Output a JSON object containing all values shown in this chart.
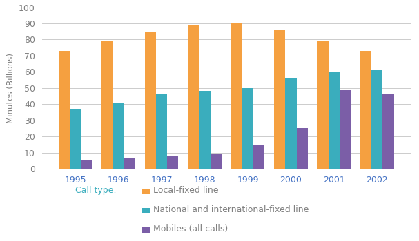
{
  "years": [
    "1995",
    "1996",
    "1997",
    "1998",
    "1999",
    "2000",
    "2001",
    "2002"
  ],
  "local_fixed": [
    73,
    79,
    85,
    89,
    90,
    86,
    79,
    73
  ],
  "national_intl": [
    37,
    41,
    46,
    48,
    50,
    56,
    60,
    61
  ],
  "mobiles": [
    5,
    7,
    8,
    9,
    15,
    25,
    49,
    46
  ],
  "color_local": "#F5A040",
  "color_national": "#3AADBD",
  "color_mobiles": "#7B5EA7",
  "ylabel": "Minutes (Billions)",
  "ylim": [
    0,
    100
  ],
  "yticks": [
    0,
    10,
    20,
    30,
    40,
    50,
    60,
    70,
    80,
    90,
    100
  ],
  "legend_prefix": "Call type:",
  "legend_labels": [
    "Local-fixed line",
    "National and international-fixed line",
    "Mobiles (all calls)"
  ],
  "tick_color": "#4472C4",
  "legend_prefix_color": "#3AADBD",
  "legend_text_color": "#808080",
  "bar_width": 0.26
}
